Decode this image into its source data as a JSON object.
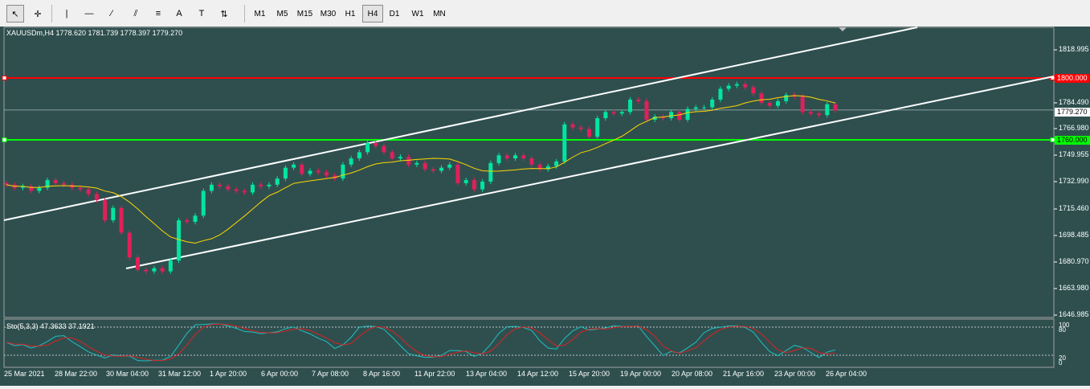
{
  "toolbar": {
    "tools": [
      {
        "name": "cursor-icon",
        "glyph": "↖"
      },
      {
        "name": "crosshair-icon",
        "glyph": "✛"
      },
      {
        "name": "vertical-line-icon",
        "glyph": "|"
      },
      {
        "name": "horizontal-line-icon",
        "glyph": "—"
      },
      {
        "name": "trendline-icon",
        "glyph": "∕"
      },
      {
        "name": "equidistant-channel-icon",
        "glyph": "⫽"
      },
      {
        "name": "fibonacci-icon",
        "glyph": "≡"
      },
      {
        "name": "text-icon",
        "glyph": "A"
      },
      {
        "name": "text-label-icon",
        "glyph": "T"
      },
      {
        "name": "arrows-icon",
        "glyph": "⇅"
      }
    ],
    "timeframes": [
      "M1",
      "M5",
      "M15",
      "M30",
      "H1",
      "H4",
      "D1",
      "W1",
      "MN"
    ],
    "active_timeframe": "H4"
  },
  "chart": {
    "legend": "XAUUSDm,H4  1778.620 1781.739 1778.397 1779.270",
    "stochastic_label": "Sto(5,3,3) 47.3633 37.1921",
    "price_labels": [
      "1818.995",
      "1784.490",
      "1766.980",
      "1749.955",
      "1732.990",
      "1715.460",
      "1698.485",
      "1680.970",
      "1663.980",
      "1646.985"
    ],
    "resistance_tag": "1800.000",
    "support_tag": "1760.000",
    "current_price_tag": "1779.270",
    "time_labels": [
      "25 Mar 2021",
      "28 Mar 22:00",
      "30 Mar 04:00",
      "31 Mar 12:00",
      "1 Apr 20:00",
      "6 Apr 00:00",
      "7 Apr 08:00",
      "8 Apr 16:00",
      "11 Apr 22:00",
      "13 Apr 04:00",
      "14 Apr 12:00",
      "15 Apr 20:00",
      "19 Apr 00:00",
      "20 Apr 08:00",
      "21 Apr 16:00",
      "23 Apr 00:00",
      "26 Apr 04:00"
    ],
    "stochastic_axis": [
      "100",
      "80",
      "20",
      "0"
    ],
    "colors": {
      "background": "#2f4f4f",
      "bull": "#00e5a0",
      "bear": "#e0205a",
      "ma": "#ffd700",
      "resistance": "#ff0000",
      "support": "#00ff00",
      "channel": "#ffffff",
      "stoch_main": "#20c0c0",
      "stoch_signal": "#e02020"
    }
  },
  "chart_data": {
    "type": "candlestick",
    "symbol": "XAUUSDm",
    "timeframe": "H4",
    "ylim": [
      1640,
      1828
    ],
    "horizontal_levels": [
      1800.0,
      1760.0
    ],
    "current_price": 1779.27,
    "closes": [
      1731,
      1729,
      1730,
      1727,
      1729,
      1734,
      1732,
      1731,
      1729,
      1728,
      1725,
      1721,
      1708,
      1716,
      1700,
      1684,
      1676,
      1675,
      1677,
      1675,
      1682,
      1708,
      1707,
      1711,
      1727,
      1731,
      1730,
      1728,
      1727,
      1726,
      1731,
      1730,
      1731,
      1735,
      1742,
      1744,
      1738,
      1740,
      1739,
      1737,
      1735,
      1744,
      1748,
      1752,
      1758,
      1756,
      1752,
      1748,
      1749,
      1744,
      1745,
      1741,
      1740,
      1742,
      1744,
      1732,
      1734,
      1728,
      1733,
      1745,
      1750,
      1748,
      1750,
      1748,
      1744,
      1741,
      1743,
      1746,
      1770,
      1768,
      1767,
      1762,
      1774,
      1778,
      1777,
      1778,
      1786,
      1785,
      1773,
      1775,
      1774,
      1778,
      1773,
      1780,
      1781,
      1781,
      1786,
      1793,
      1795,
      1796,
      1794,
      1790,
      1784,
      1782,
      1785,
      1789,
      1788,
      1778,
      1777,
      1776,
      1783,
      1779
    ]
  }
}
